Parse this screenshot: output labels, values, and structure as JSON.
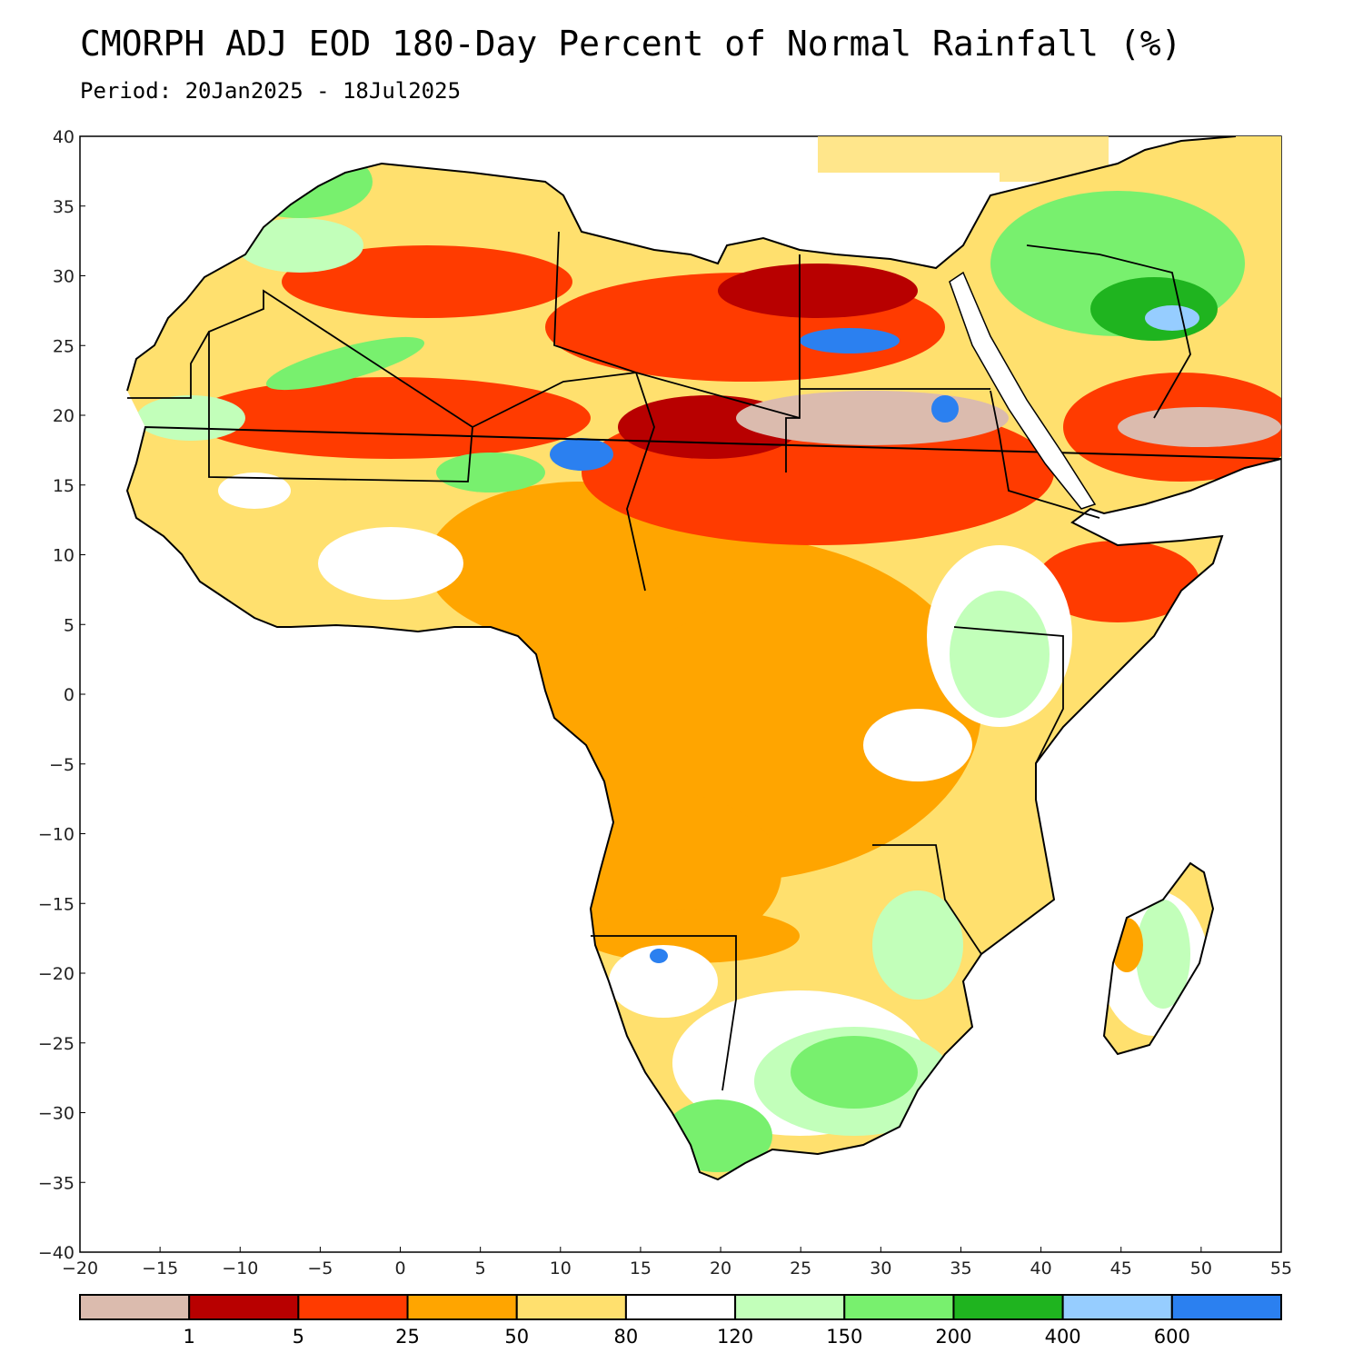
{
  "title": "CMORPH ADJ EOD 180-Day Percent of Normal Rainfall (%)",
  "subtitle": "Period: 20Jan2025 - 18Jul2025",
  "map": {
    "lon_range": [
      -20,
      55
    ],
    "lat_range": [
      -40,
      40
    ],
    "lon_ticks": [
      -20,
      -15,
      -10,
      -5,
      0,
      5,
      10,
      15,
      20,
      25,
      30,
      35,
      40,
      45,
      50,
      55
    ],
    "lat_ticks": [
      40,
      35,
      30,
      25,
      20,
      15,
      10,
      5,
      0,
      -5,
      -10,
      -15,
      -20,
      -25,
      -30,
      -35,
      -40
    ],
    "lon_tick_labels": [
      "−20",
      "−15",
      "−10",
      "−5",
      "0",
      "5",
      "10",
      "15",
      "20",
      "25",
      "30",
      "35",
      "40",
      "45",
      "50",
      "55"
    ],
    "lat_tick_labels": [
      "40",
      "35",
      "30",
      "25",
      "20",
      "15",
      "10",
      "5",
      "0",
      "−5",
      "−10",
      "−15",
      "−20",
      "−25",
      "−30",
      "−35",
      "−40"
    ]
  },
  "colorbar": {
    "colors": [
      "#dbbbae",
      "#b80000",
      "#ff3b00",
      "#ffa500",
      "#ffe06e",
      "#ffffff",
      "#c2ffba",
      "#78f06e",
      "#1fb41f",
      "#96cdff",
      "#2b80f0"
    ],
    "boundary_labels": [
      "1",
      "5",
      "25",
      "50",
      "80",
      "120",
      "150",
      "200",
      "400",
      "600"
    ]
  },
  "legend_colors": {
    "very_dry": "#dbbbae",
    "dry_red": "#b80000",
    "red": "#ff3b00",
    "orange": "#ffa500",
    "yellow": "#ffe06e",
    "normal": "#ffffff",
    "light_green": "#c2ffba",
    "green": "#78f06e",
    "dark_green": "#1fb41f",
    "light_blue": "#96cdff",
    "blue": "#2b80f0"
  }
}
